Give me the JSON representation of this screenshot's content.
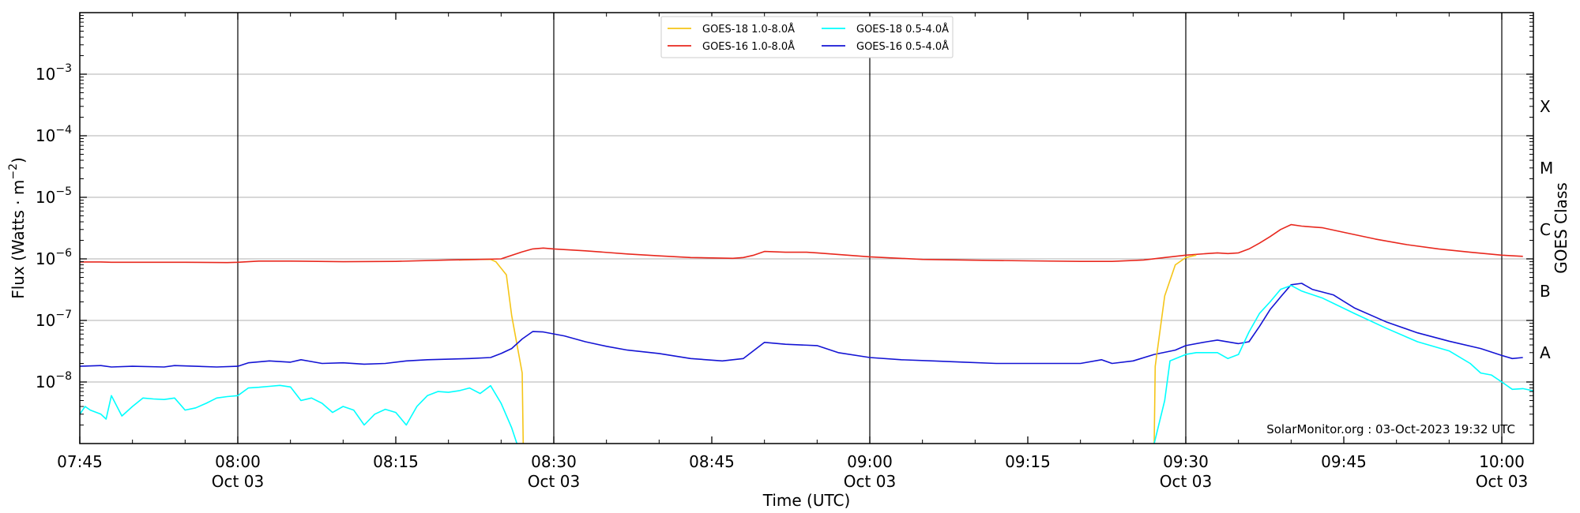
{
  "chart_data": {
    "type": "line",
    "title": "",
    "xlabel": "Time (UTC)",
    "ylabel_main": "Flux (Watts · m",
    "ylabel_exp": "−2",
    "ylabel_close": ")",
    "y2label": "GOES Class",
    "yscale": "log",
    "ylim": [
      1e-09,
      0.01
    ],
    "xlim": [
      "07:45",
      "10:03"
    ],
    "grid": "horizontal",
    "legend_position": "top-center",
    "x_ticks": [
      {
        "t": "07:45",
        "label": "07:45",
        "sublabel": ""
      },
      {
        "t": "08:00",
        "label": "08:00",
        "sublabel": "Oct 03"
      },
      {
        "t": "08:15",
        "label": "08:15",
        "sublabel": ""
      },
      {
        "t": "08:30",
        "label": "08:30",
        "sublabel": "Oct 03"
      },
      {
        "t": "08:45",
        "label": "08:45",
        "sublabel": ""
      },
      {
        "t": "09:00",
        "label": "09:00",
        "sublabel": "Oct 03"
      },
      {
        "t": "09:15",
        "label": "09:15",
        "sublabel": ""
      },
      {
        "t": "09:30",
        "label": "09:30",
        "sublabel": "Oct 03"
      },
      {
        "t": "09:45",
        "label": "09:45",
        "sublabel": ""
      },
      {
        "t": "10:00",
        "label": "10:00",
        "sublabel": "Oct 03"
      }
    ],
    "vertical_lines": [
      "08:00",
      "08:30",
      "09:00",
      "09:30",
      "10:00"
    ],
    "y_ticks": [
      {
        "value": 1e-08,
        "base": "10",
        "exp": "−8"
      },
      {
        "value": 1e-07,
        "base": "10",
        "exp": "−7"
      },
      {
        "value": 1e-06,
        "base": "10",
        "exp": "−6"
      },
      {
        "value": 1e-05,
        "base": "10",
        "exp": "−5"
      },
      {
        "value": 0.0001,
        "base": "10",
        "exp": "−4"
      },
      {
        "value": 0.001,
        "base": "10",
        "exp": "−3"
      }
    ],
    "goes_classes": [
      {
        "label": "A",
        "value": 3e-08
      },
      {
        "label": "B",
        "value": 3e-07
      },
      {
        "label": "C",
        "value": 3e-06
      },
      {
        "label": "M",
        "value": 3e-05
      },
      {
        "label": "X",
        "value": 0.0003
      }
    ],
    "series": [
      {
        "name": "GOES-18 1.0-8.0Å",
        "color": "#f5c518",
        "points": [
          [
            "08:21",
            9.6e-07
          ],
          [
            "08:22",
            9.7e-07
          ],
          [
            "08:23",
            9.8e-07
          ],
          [
            "08:24",
            9.8e-07
          ],
          [
            "08:24.5",
            9e-07
          ],
          [
            "08:25.5",
            5.5e-07
          ],
          [
            "08:26",
            1.2e-07
          ],
          [
            "08:27",
            1.4e-08
          ],
          [
            "08:27.1",
            1e-09
          ]
        ]
      },
      {
        "name": "GOES-16 1.0-8.0Å",
        "color": "#e8281e",
        "points": [
          [
            "07:45",
            8.9e-07
          ],
          [
            "07:47",
            8.9e-07
          ],
          [
            "07:48",
            8.8e-07
          ],
          [
            "07:55",
            8.8e-07
          ],
          [
            "07:59",
            8.7e-07
          ],
          [
            "08:00",
            8.8e-07
          ],
          [
            "08:01",
            9e-07
          ],
          [
            "08:02",
            9.2e-07
          ],
          [
            "08:05",
            9.2e-07
          ],
          [
            "08:10",
            9e-07
          ],
          [
            "08:15",
            9.1e-07
          ],
          [
            "08:20",
            9.6e-07
          ],
          [
            "08:23",
            9.8e-07
          ],
          [
            "08:25",
            1e-06
          ],
          [
            "08:27",
            1.3e-06
          ],
          [
            "08:28",
            1.45e-06
          ],
          [
            "08:29",
            1.5e-06
          ],
          [
            "08:30",
            1.45e-06
          ],
          [
            "08:33",
            1.35e-06
          ],
          [
            "08:37",
            1.2e-06
          ],
          [
            "08:40",
            1.12e-06
          ],
          [
            "08:43",
            1.05e-06
          ],
          [
            "08:47",
            1.02e-06
          ],
          [
            "08:48",
            1.05e-06
          ],
          [
            "08:49",
            1.15e-06
          ],
          [
            "08:50",
            1.32e-06
          ],
          [
            "08:51",
            1.3e-06
          ],
          [
            "08:52",
            1.28e-06
          ],
          [
            "08:54",
            1.28e-06
          ],
          [
            "08:55",
            1.25e-06
          ],
          [
            "08:57",
            1.18e-06
          ],
          [
            "09:00",
            1.08e-06
          ],
          [
            "09:05",
            9.8e-07
          ],
          [
            "09:10",
            9.5e-07
          ],
          [
            "09:15",
            9.3e-07
          ],
          [
            "09:20",
            9.1e-07
          ],
          [
            "09:23",
            9.1e-07
          ],
          [
            "09:26",
            9.6e-07
          ],
          [
            "09:28",
            1.05e-06
          ],
          [
            "09:30",
            1.15e-06
          ],
          [
            "09:32",
            1.22e-06
          ],
          [
            "09:33",
            1.25e-06
          ],
          [
            "09:34",
            1.22e-06
          ],
          [
            "09:35",
            1.25e-06
          ],
          [
            "09:36",
            1.45e-06
          ],
          [
            "09:37",
            1.8e-06
          ],
          [
            "09:38",
            2.3e-06
          ],
          [
            "09:39",
            3e-06
          ],
          [
            "09:40",
            3.6e-06
          ],
          [
            "09:41",
            3.4e-06
          ],
          [
            "09:43",
            3.2e-06
          ],
          [
            "09:45",
            2.7e-06
          ],
          [
            "09:48",
            2.1e-06
          ],
          [
            "09:51",
            1.7e-06
          ],
          [
            "09:54",
            1.45e-06
          ],
          [
            "09:57",
            1.28e-06
          ],
          [
            "10:00",
            1.15e-06
          ],
          [
            "10:02",
            1.1e-06
          ]
        ]
      },
      {
        "name": "GOES-18 0.5-4.0Å",
        "color": "#00ffff",
        "points": [
          [
            "07:45",
            3e-09
          ],
          [
            "07:45.5",
            4e-09
          ],
          [
            "07:46",
            3.5e-09
          ],
          [
            "07:47",
            3e-09
          ],
          [
            "07:47.5",
            2.5e-09
          ],
          [
            "07:48",
            6e-09
          ],
          [
            "07:49",
            2.8e-09
          ],
          [
            "07:50",
            4e-09
          ],
          [
            "07:51",
            5.5e-09
          ],
          [
            "07:52",
            5.3e-09
          ],
          [
            "07:53",
            5.2e-09
          ],
          [
            "07:54",
            5.5e-09
          ],
          [
            "07:55",
            3.5e-09
          ],
          [
            "07:56",
            3.8e-09
          ],
          [
            "07:57",
            4.5e-09
          ],
          [
            "07:58",
            5.5e-09
          ],
          [
            "07:59",
            5.8e-09
          ],
          [
            "08:00",
            6e-09
          ],
          [
            "08:01",
            8e-09
          ],
          [
            "08:02",
            8.2e-09
          ],
          [
            "08:03",
            8.5e-09
          ],
          [
            "08:04",
            8.8e-09
          ],
          [
            "08:05",
            8.3e-09
          ],
          [
            "08:06",
            5e-09
          ],
          [
            "08:07",
            5.5e-09
          ],
          [
            "08:08",
            4.5e-09
          ],
          [
            "08:09",
            3.2e-09
          ],
          [
            "08:10",
            4e-09
          ],
          [
            "08:11",
            3.5e-09
          ],
          [
            "08:12",
            2e-09
          ],
          [
            "08:13",
            3e-09
          ],
          [
            "08:14",
            3.6e-09
          ],
          [
            "08:15",
            3.2e-09
          ],
          [
            "08:16",
            2e-09
          ],
          [
            "08:17",
            4e-09
          ],
          [
            "08:18",
            6e-09
          ],
          [
            "08:19",
            7e-09
          ],
          [
            "08:20",
            6.8e-09
          ],
          [
            "08:21",
            7.2e-09
          ],
          [
            "08:22",
            8e-09
          ],
          [
            "08:23",
            6.5e-09
          ],
          [
            "08:24",
            8.7e-09
          ],
          [
            "08:25",
            4.5e-09
          ],
          [
            "08:26",
            1.8e-09
          ],
          [
            "08:26.5",
            1e-09
          ]
        ]
      },
      {
        "name": "GOES-16 0.5-4.0Å",
        "color": "#1414d4",
        "points": [
          [
            "07:45",
            1.8e-08
          ],
          [
            "07:47",
            1.85e-08
          ],
          [
            "07:48",
            1.75e-08
          ],
          [
            "07:50",
            1.8e-08
          ],
          [
            "07:53",
            1.75e-08
          ],
          [
            "07:54",
            1.85e-08
          ],
          [
            "07:56",
            1.8e-08
          ],
          [
            "07:58",
            1.75e-08
          ],
          [
            "08:00",
            1.8e-08
          ],
          [
            "08:01",
            2.05e-08
          ],
          [
            "08:03",
            2.2e-08
          ],
          [
            "08:05",
            2.1e-08
          ],
          [
            "08:06",
            2.3e-08
          ],
          [
            "08:08",
            2e-08
          ],
          [
            "08:10",
            2.05e-08
          ],
          [
            "08:12",
            1.95e-08
          ],
          [
            "08:14",
            2e-08
          ],
          [
            "08:16",
            2.2e-08
          ],
          [
            "08:18",
            2.3e-08
          ],
          [
            "08:20",
            2.35e-08
          ],
          [
            "08:22",
            2.4e-08
          ],
          [
            "08:24",
            2.5e-08
          ],
          [
            "08:25",
            2.9e-08
          ],
          [
            "08:26",
            3.5e-08
          ],
          [
            "08:27",
            5e-08
          ],
          [
            "08:28",
            6.6e-08
          ],
          [
            "08:29",
            6.5e-08
          ],
          [
            "08:31",
            5.6e-08
          ],
          [
            "08:33",
            4.5e-08
          ],
          [
            "08:35",
            3.8e-08
          ],
          [
            "08:37",
            3.3e-08
          ],
          [
            "08:40",
            2.9e-08
          ],
          [
            "08:43",
            2.4e-08
          ],
          [
            "08:46",
            2.2e-08
          ],
          [
            "08:48",
            2.4e-08
          ],
          [
            "08:50",
            4.4e-08
          ],
          [
            "08:52",
            4.1e-08
          ],
          [
            "08:55",
            3.9e-08
          ],
          [
            "08:57",
            3e-08
          ],
          [
            "09:00",
            2.5e-08
          ],
          [
            "09:03",
            2.3e-08
          ],
          [
            "09:06",
            2.2e-08
          ],
          [
            "09:09",
            2.1e-08
          ],
          [
            "09:12",
            2e-08
          ],
          [
            "09:15",
            2e-08
          ],
          [
            "09:18",
            2e-08
          ],
          [
            "09:20",
            2e-08
          ],
          [
            "09:22",
            2.3e-08
          ],
          [
            "09:23",
            2e-08
          ],
          [
            "09:25",
            2.2e-08
          ],
          [
            "09:27",
            2.8e-08
          ],
          [
            "09:29",
            3.3e-08
          ],
          [
            "09:30",
            3.9e-08
          ],
          [
            "09:32",
            4.5e-08
          ],
          [
            "09:33",
            4.8e-08
          ],
          [
            "09:35",
            4.2e-08
          ],
          [
            "09:36",
            4.5e-08
          ],
          [
            "09:37",
            8e-08
          ],
          [
            "09:38",
            1.5e-07
          ],
          [
            "09:39",
            2.4e-07
          ],
          [
            "09:40",
            3.8e-07
          ],
          [
            "09:41",
            4e-07
          ],
          [
            "09:42",
            3.2e-07
          ],
          [
            "09:44",
            2.6e-07
          ],
          [
            "09:46",
            1.6e-07
          ],
          [
            "09:49",
            9.5e-08
          ],
          [
            "09:52",
            6.3e-08
          ],
          [
            "09:55",
            4.6e-08
          ],
          [
            "09:58",
            3.5e-08
          ],
          [
            "10:00",
            2.7e-08
          ],
          [
            "10:01",
            2.4e-08
          ],
          [
            "10:02",
            2.5e-08
          ]
        ]
      }
    ],
    "extra_series": [
      {
        "name": "GOES-18 1.0-8.0Å",
        "color": "#f5c518",
        "points": [
          [
            "09:27",
            1e-09
          ],
          [
            "09:27.1",
            1.8e-08
          ],
          [
            "09:28",
            2.5e-07
          ],
          [
            "09:29",
            8e-07
          ],
          [
            "09:30",
            1.05e-06
          ],
          [
            "09:31",
            1.15e-06
          ]
        ]
      },
      {
        "name": "GOES-18 0.5-4.0Å",
        "color": "#00ffff",
        "points": [
          [
            "09:27",
            1e-09
          ],
          [
            "09:28",
            5e-09
          ],
          [
            "09:28.5",
            2.2e-08
          ],
          [
            "09:30",
            2.8e-08
          ],
          [
            "09:31",
            3e-08
          ],
          [
            "09:32",
            3e-08
          ],
          [
            "09:33",
            3e-08
          ],
          [
            "09:34",
            2.4e-08
          ],
          [
            "09:35",
            2.8e-08
          ],
          [
            "09:36",
            6.5e-08
          ],
          [
            "09:37",
            1.3e-07
          ],
          [
            "09:38",
            2e-07
          ],
          [
            "09:39",
            3.2e-07
          ],
          [
            "09:40",
            3.7e-07
          ],
          [
            "09:41",
            3e-07
          ],
          [
            "09:43",
            2.3e-07
          ],
          [
            "09:46",
            1.3e-07
          ],
          [
            "09:49",
            7.5e-08
          ],
          [
            "09:52",
            4.5e-08
          ],
          [
            "09:55",
            3.2e-08
          ],
          [
            "09:57",
            2e-08
          ],
          [
            "09:58",
            1.4e-08
          ],
          [
            "09:59",
            1.3e-08
          ],
          [
            "10:00",
            1e-08
          ],
          [
            "10:01",
            7.6e-09
          ],
          [
            "10:02",
            7.8e-09
          ],
          [
            "10:03",
            7.2e-09
          ]
        ]
      }
    ],
    "legend": [
      {
        "label": "GOES-18 1.0-8.0Å",
        "color": "#f5c518"
      },
      {
        "label": "GOES-16 1.0-8.0Å",
        "color": "#e8281e"
      },
      {
        "label": "GOES-18 0.5-4.0Å",
        "color": "#00ffff"
      },
      {
        "label": "GOES-16 0.5-4.0Å",
        "color": "#1414d4"
      }
    ],
    "credit": "SolarMonitor.org : 03-Oct-2023 19:32 UTC"
  }
}
